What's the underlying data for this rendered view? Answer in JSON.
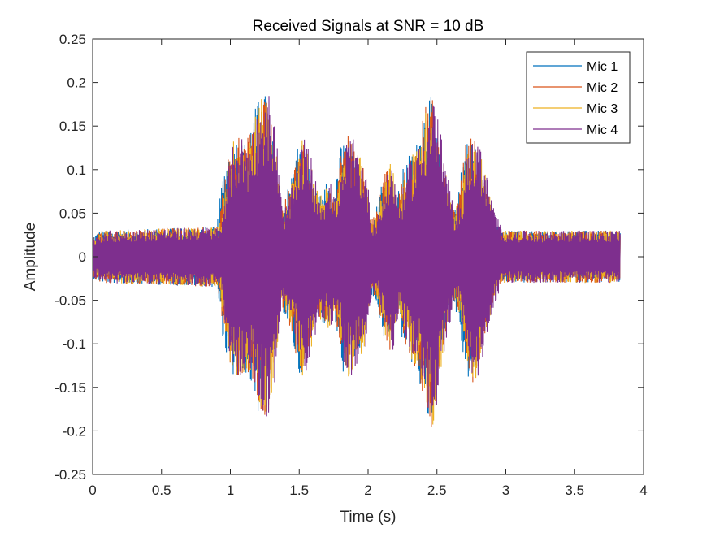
{
  "chart_data": {
    "type": "line",
    "title": "Received Signals at SNR = 10 dB",
    "xlabel": "Time (s)",
    "ylabel": "Amplitude",
    "xlim": [
      0,
      4
    ],
    "ylim": [
      -0.25,
      0.25
    ],
    "xticks": [
      0,
      0.5,
      1,
      1.5,
      2,
      2.5,
      3,
      3.5,
      4
    ],
    "xtick_labels": [
      "0",
      "0.5",
      "1",
      "1.5",
      "2",
      "2.5",
      "3",
      "3.5",
      "4"
    ],
    "yticks": [
      0.25,
      0.2,
      0.15,
      0.1,
      0.05,
      0,
      -0.05,
      -0.1,
      -0.15,
      -0.2,
      -0.25
    ],
    "ytick_labels": [
      "0.25",
      "0.2",
      "0.15",
      "0.1",
      "0.05",
      "0",
      "-0.05",
      "-0.1",
      "-0.15",
      "-0.2",
      "-0.25"
    ],
    "grid": false,
    "legend_position": "top-right",
    "signal_end_time": 3.83,
    "series": [
      {
        "name": "Mic 1",
        "color": "#0072BD",
        "delay": 0.0
      },
      {
        "name": "Mic 2",
        "color": "#D95319",
        "delay": 0.01
      },
      {
        "name": "Mic 3",
        "color": "#EDB120",
        "delay": 0.02
      },
      {
        "name": "Mic 4",
        "color": "#7E2F8E",
        "delay": 0.03
      }
    ],
    "envelope": {
      "t": [
        0,
        0.05,
        0.9,
        0.95,
        1.0,
        1.05,
        1.1,
        1.15,
        1.2,
        1.25,
        1.3,
        1.35,
        1.4,
        1.45,
        1.5,
        1.55,
        1.6,
        1.65,
        1.7,
        1.75,
        1.8,
        1.85,
        1.9,
        1.95,
        2.0,
        2.05,
        2.1,
        2.15,
        2.2,
        2.25,
        2.3,
        2.35,
        2.4,
        2.45,
        2.5,
        2.55,
        2.6,
        2.65,
        2.7,
        2.75,
        2.8,
        2.85,
        2.9,
        2.95,
        3.0,
        3.83
      ],
      "upper": [
        0.025,
        0.03,
        0.035,
        0.1,
        0.135,
        0.14,
        0.13,
        0.16,
        0.18,
        0.19,
        0.15,
        0.05,
        0.07,
        0.1,
        0.14,
        0.12,
        0.08,
        0.07,
        0.085,
        0.06,
        0.13,
        0.14,
        0.12,
        0.11,
        0.04,
        0.05,
        0.09,
        0.11,
        0.06,
        0.1,
        0.12,
        0.13,
        0.17,
        0.19,
        0.14,
        0.09,
        0.05,
        0.07,
        0.13,
        0.14,
        0.12,
        0.08,
        0.05,
        0.03,
        0.03,
        0.03
      ],
      "lower": [
        -0.025,
        -0.03,
        -0.035,
        -0.1,
        -0.14,
        -0.14,
        -0.13,
        -0.15,
        -0.18,
        -0.19,
        -0.14,
        -0.05,
        -0.07,
        -0.1,
        -0.14,
        -0.12,
        -0.08,
        -0.07,
        -0.085,
        -0.06,
        -0.13,
        -0.14,
        -0.12,
        -0.11,
        -0.04,
        -0.05,
        -0.09,
        -0.11,
        -0.06,
        -0.1,
        -0.12,
        -0.13,
        -0.17,
        -0.2,
        -0.14,
        -0.09,
        -0.05,
        -0.07,
        -0.13,
        -0.15,
        -0.12,
        -0.08,
        -0.05,
        -0.03,
        -0.03,
        -0.03
      ]
    }
  }
}
